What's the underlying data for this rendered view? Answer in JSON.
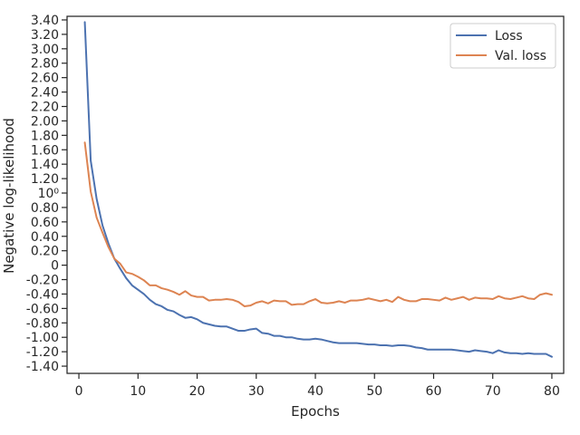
{
  "chart_data": {
    "type": "line",
    "xlabel": "Epochs",
    "ylabel": "Negative log-likelihood",
    "xlim": [
      -2,
      82
    ],
    "ylim": [
      -1.5,
      3.45
    ],
    "x_ticks": [
      0,
      10,
      20,
      30,
      40,
      50,
      60,
      70,
      80
    ],
    "y_ticks": [
      {
        "value": -1.4,
        "label": "-1.40"
      },
      {
        "value": -1.2,
        "label": "-1.20"
      },
      {
        "value": -1.0,
        "label": "-1.00"
      },
      {
        "value": -0.8,
        "label": "-0.80"
      },
      {
        "value": -0.6,
        "label": "-0.60"
      },
      {
        "value": -0.4,
        "label": "-0.40"
      },
      {
        "value": -0.2,
        "label": "-0.20"
      },
      {
        "value": 0.0,
        "label": "0"
      },
      {
        "value": 0.2,
        "label": "0.20"
      },
      {
        "value": 0.4,
        "label": "0.40"
      },
      {
        "value": 0.6,
        "label": "0.60"
      },
      {
        "value": 0.8,
        "label": "0.80"
      },
      {
        "value": 1.0,
        "label": "10⁰"
      },
      {
        "value": 1.2,
        "label": "1.20"
      },
      {
        "value": 1.4,
        "label": "1.40"
      },
      {
        "value": 1.6,
        "label": "1.60"
      },
      {
        "value": 1.8,
        "label": "1.80"
      },
      {
        "value": 2.0,
        "label": "2.00"
      },
      {
        "value": 2.2,
        "label": "2.20"
      },
      {
        "value": 2.4,
        "label": "2.40"
      },
      {
        "value": 2.6,
        "label": "2.60"
      },
      {
        "value": 2.8,
        "label": "2.80"
      },
      {
        "value": 3.0,
        "label": "3.00"
      },
      {
        "value": 3.2,
        "label": "3.20"
      },
      {
        "value": 3.4,
        "label": "3.40"
      }
    ],
    "legend_position": "top-right",
    "grid": false,
    "series": [
      {
        "name": "Loss",
        "color": "#4c72b0",
        "x": [
          1,
          2,
          3,
          4,
          5,
          6,
          7,
          8,
          9,
          10,
          11,
          12,
          13,
          14,
          15,
          16,
          17,
          18,
          19,
          20,
          21,
          22,
          23,
          24,
          25,
          26,
          27,
          28,
          29,
          30,
          31,
          32,
          33,
          34,
          35,
          36,
          37,
          38,
          39,
          40,
          41,
          42,
          43,
          44,
          45,
          46,
          47,
          48,
          49,
          50,
          51,
          52,
          53,
          54,
          55,
          56,
          57,
          58,
          59,
          60,
          61,
          62,
          63,
          64,
          65,
          66,
          67,
          68,
          69,
          70,
          71,
          72,
          73,
          74,
          75,
          76,
          77,
          78,
          79,
          80
        ],
        "values": [
          3.37,
          1.45,
          0.92,
          0.55,
          0.3,
          0.09,
          -0.05,
          -0.18,
          -0.28,
          -0.34,
          -0.4,
          -0.48,
          -0.54,
          -0.57,
          -0.62,
          -0.64,
          -0.69,
          -0.73,
          -0.72,
          -0.75,
          -0.8,
          -0.82,
          -0.84,
          -0.85,
          -0.85,
          -0.88,
          -0.91,
          -0.91,
          -0.89,
          -0.88,
          -0.94,
          -0.95,
          -0.98,
          -0.98,
          -1.0,
          -1.0,
          -1.02,
          -1.03,
          -1.03,
          -1.02,
          -1.03,
          -1.05,
          -1.07,
          -1.08,
          -1.08,
          -1.08,
          -1.08,
          -1.09,
          -1.1,
          -1.1,
          -1.11,
          -1.11,
          -1.12,
          -1.11,
          -1.11,
          -1.12,
          -1.14,
          -1.15,
          -1.17,
          -1.17,
          -1.17,
          -1.17,
          -1.17,
          -1.18,
          -1.19,
          -1.2,
          -1.18,
          -1.19,
          -1.2,
          -1.22,
          -1.18,
          -1.21,
          -1.22,
          -1.22,
          -1.23,
          -1.22,
          -1.23,
          -1.23,
          -1.23,
          -1.27
        ]
      },
      {
        "name": "Val. loss",
        "color": "#dd8452",
        "x": [
          1,
          2,
          3,
          4,
          5,
          6,
          7,
          8,
          9,
          10,
          11,
          12,
          13,
          14,
          15,
          16,
          17,
          18,
          19,
          20,
          21,
          22,
          23,
          24,
          25,
          26,
          27,
          28,
          29,
          30,
          31,
          32,
          33,
          34,
          35,
          36,
          37,
          38,
          39,
          40,
          41,
          42,
          43,
          44,
          45,
          46,
          47,
          48,
          49,
          50,
          51,
          52,
          53,
          54,
          55,
          56,
          57,
          58,
          59,
          60,
          61,
          62,
          63,
          64,
          65,
          66,
          67,
          68,
          69,
          70,
          71,
          72,
          73,
          74,
          75,
          76,
          77,
          78,
          79,
          80
        ],
        "values": [
          1.7,
          1.02,
          0.66,
          0.45,
          0.25,
          0.09,
          0.02,
          -0.1,
          -0.12,
          -0.16,
          -0.21,
          -0.28,
          -0.28,
          -0.32,
          -0.34,
          -0.37,
          -0.41,
          -0.36,
          -0.42,
          -0.44,
          -0.44,
          -0.49,
          -0.48,
          -0.48,
          -0.47,
          -0.48,
          -0.51,
          -0.57,
          -0.56,
          -0.52,
          -0.5,
          -0.53,
          -0.49,
          -0.5,
          -0.5,
          -0.55,
          -0.54,
          -0.54,
          -0.5,
          -0.47,
          -0.52,
          -0.53,
          -0.52,
          -0.5,
          -0.52,
          -0.49,
          -0.49,
          -0.48,
          -0.46,
          -0.48,
          -0.5,
          -0.48,
          -0.51,
          -0.44,
          -0.48,
          -0.5,
          -0.5,
          -0.47,
          -0.47,
          -0.48,
          -0.49,
          -0.45,
          -0.48,
          -0.46,
          -0.44,
          -0.48,
          -0.45,
          -0.46,
          -0.46,
          -0.47,
          -0.43,
          -0.46,
          -0.47,
          -0.45,
          -0.43,
          -0.46,
          -0.47,
          -0.41,
          -0.39,
          -0.41
        ]
      }
    ]
  }
}
